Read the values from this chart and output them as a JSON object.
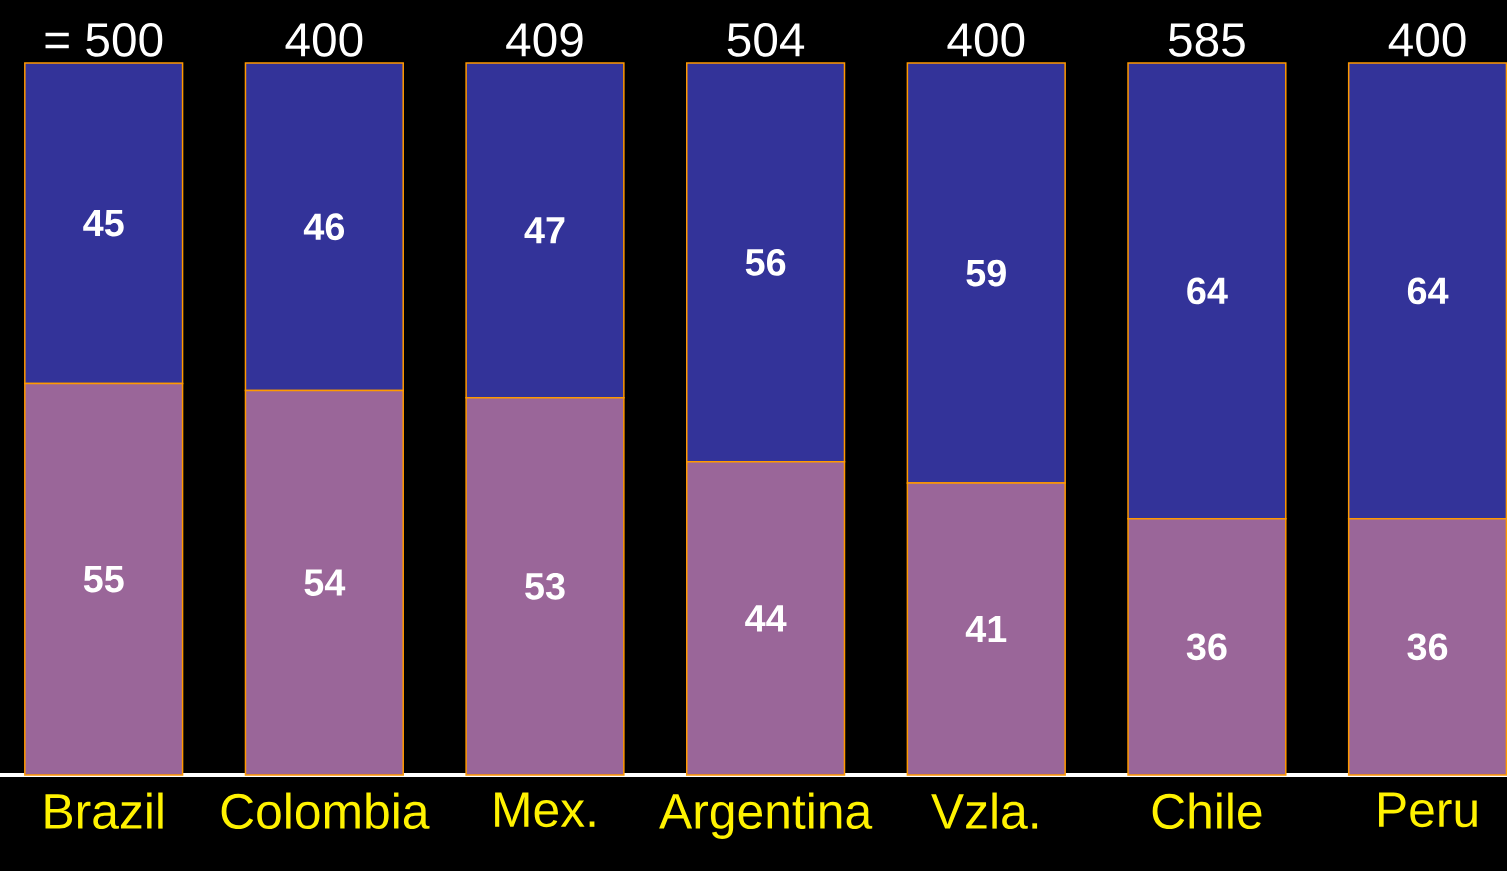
{
  "chart_data": {
    "type": "bar",
    "stacked": true,
    "data_labels": true,
    "tick_labels": "x",
    "categories": [
      "Brazil",
      "Colombia",
      "Mex.",
      "Argentina",
      "Vzla.",
      "Chile",
      "Peru"
    ],
    "series": [
      {
        "color": "#9a6699",
        "values": [
          55,
          54,
          53,
          44,
          41,
          36,
          36
        ]
      },
      {
        "color": "#333399",
        "values": [
          45,
          46,
          47,
          56,
          59,
          64,
          64
        ]
      }
    ],
    "annotations": [
      "= 500",
      "400",
      "409",
      "504",
      "400",
      "585",
      "400"
    ]
  }
}
